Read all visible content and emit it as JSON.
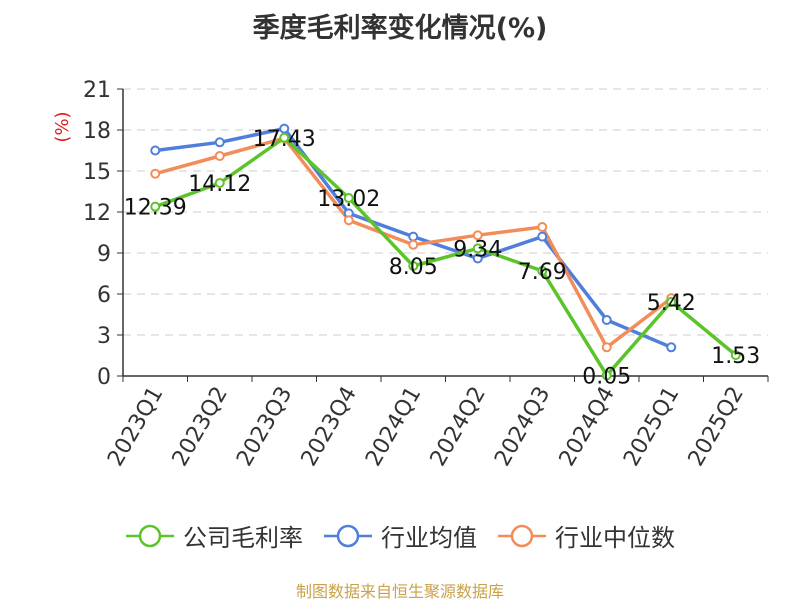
{
  "chart_data": {
    "type": "line",
    "title": "季度毛利率变化情况(%)",
    "ylabel": "(%)",
    "categories": [
      "2023Q1",
      "2023Q2",
      "2023Q3",
      "2023Q4",
      "2024Q1",
      "2024Q2",
      "2024Q3",
      "2024Q4",
      "2025Q1",
      "2025Q2"
    ],
    "ylim": [
      0,
      21
    ],
    "yticks": [
      0,
      3,
      6,
      9,
      12,
      15,
      18,
      21
    ],
    "grid": true,
    "legend_position": "bottom",
    "series": [
      {
        "name": "公司毛利率",
        "color": "#5bc42b",
        "values": [
          12.39,
          14.12,
          17.43,
          13.02,
          8.05,
          9.34,
          7.69,
          0.05,
          5.42,
          1.53
        ],
        "labels": [
          "12.39",
          "14.12",
          "17.43",
          "13.02",
          "8.05",
          "9.34",
          "7.69",
          "0.05",
          "5.42",
          "1.53"
        ]
      },
      {
        "name": "行业均值",
        "color": "#4f7fdb",
        "values": [
          16.5,
          17.1,
          18.1,
          11.9,
          10.2,
          8.6,
          10.2,
          4.1,
          2.1,
          null
        ]
      },
      {
        "name": "行业中位数",
        "color": "#f28d5a",
        "values": [
          14.8,
          16.1,
          17.4,
          11.4,
          9.6,
          10.3,
          10.9,
          2.1,
          5.7,
          null
        ]
      }
    ]
  },
  "source": "制图数据来自恒生聚源数据库"
}
